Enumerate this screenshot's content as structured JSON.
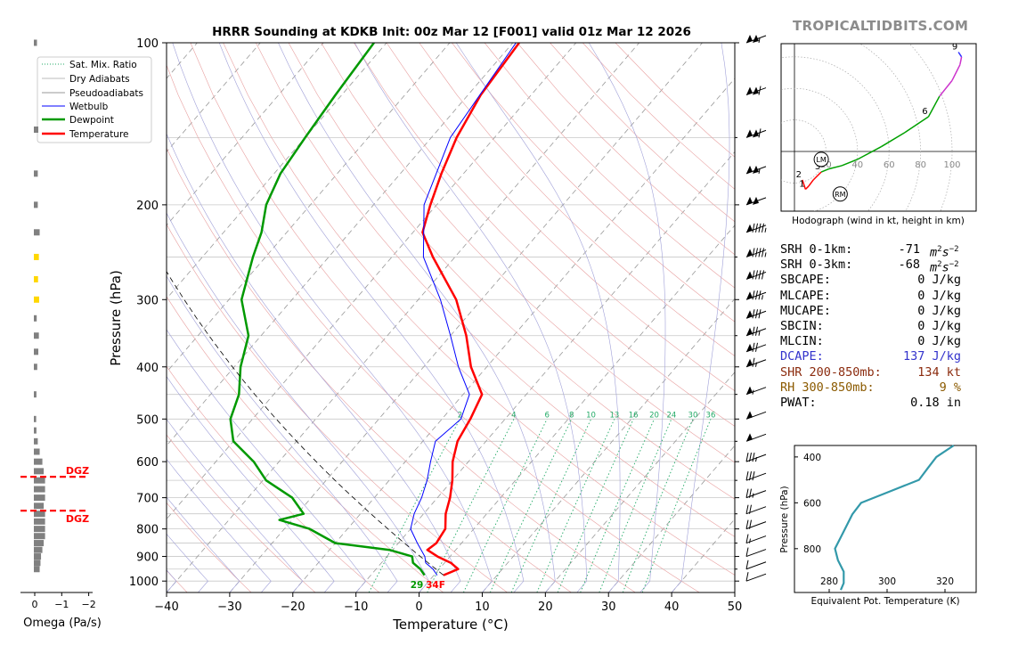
{
  "title": "HRRR Sounding at KDKB Init: 00z Mar 12 [F001] valid 01z Mar 12 2026",
  "watermark": "TROPICALTIDBITS.COM",
  "legend": [
    "Sat. Mix. Ratio",
    "Dry Adiabats",
    "Pseudoadiabats",
    "Wetbulb",
    "Dewpoint",
    "Temperature"
  ],
  "colors": {
    "temperature": "#ff0000",
    "dewpoint": "#009900",
    "wetbulb": "#0000ff",
    "theta_e": "#3399aa",
    "dcape": "#3333cc",
    "shear": "#8b2b0e",
    "rh": "#8b5a00"
  },
  "stats": {
    "srh01_label": "SRH 0-1km:",
    "srh01_value": "-71",
    "srh03_label": "SRH 0-3km:",
    "srh03_value": "-68",
    "srh_unit": "m2s-2",
    "sbcape_label": "SBCAPE:",
    "sbcape_value": "0 J/kg",
    "mlcape_label": "MLCAPE:",
    "mlcape_value": "0 J/kg",
    "mucape_label": "MUCAPE:",
    "mucape_value": "0 J/kg",
    "sbcin_label": "SBCIN:",
    "sbcin_value": "0 J/kg",
    "mlcin_label": "MLCIN:",
    "mlcin_value": "0 J/kg",
    "dcape_label": "DCAPE:",
    "dcape_value": "137 J/kg",
    "shr_label": "SHR 200-850mb:",
    "shr_value": "134 kt",
    "rh_label": "RH 300-850mb:",
    "rh_value": "9 %",
    "pwat_label": "PWAT:",
    "pwat_value": "0.18 in"
  },
  "surface_labels": {
    "dewpoint": "29",
    "temperature": "34F"
  },
  "dgz_label": "DGZ",
  "chart_data": [
    {
      "type": "line",
      "kind": "skew-t",
      "xlabel": "Temperature (°C)",
      "ylabel": "Pressure (hPa)",
      "xlim": [
        -40,
        50
      ],
      "ylim": [
        1050,
        100
      ],
      "x_ticks": [
        "−40",
        "−30",
        "−20",
        "−10",
        "0",
        "10",
        "20",
        "30",
        "40",
        "50"
      ],
      "y_ticks": [
        "100",
        "200",
        "300",
        "400",
        "500",
        "600",
        "700",
        "800",
        "900",
        "1000"
      ],
      "mixing_ratio_labels": [
        "2",
        "4",
        "6",
        "8",
        "10",
        "13",
        "16",
        "20",
        "24",
        "30",
        "36"
      ],
      "series": [
        {
          "name": "Temperature",
          "pressure": [
            975,
            950,
            925,
            900,
            875,
            850,
            800,
            750,
            700,
            650,
            600,
            550,
            500,
            450,
            400,
            350,
            300,
            250,
            225,
            200,
            175,
            150,
            125,
            100
          ],
          "temp_c": [
            1.5,
            3.0,
            1.0,
            -2.0,
            -4.5,
            -4.0,
            -4.5,
            -6.5,
            -8.0,
            -10.0,
            -12.5,
            -14.5,
            -15.5,
            -17.0,
            -22.5,
            -27.5,
            -34.0,
            -43.5,
            -48.5,
            -51.0,
            -53.5,
            -56.0,
            -58.0,
            -59.0
          ]
        },
        {
          "name": "Dewpoint",
          "pressure": [
            975,
            950,
            925,
            900,
            875,
            850,
            800,
            770,
            750,
            700,
            650,
            600,
            550,
            500,
            450,
            400,
            350,
            300,
            250,
            225,
            200,
            175,
            150,
            125,
            100
          ],
          "temp_c": [
            -1.5,
            -3.0,
            -5.0,
            -6.0,
            -10.5,
            -20.0,
            -26.0,
            -32.0,
            -29.0,
            -33.0,
            -39.5,
            -44.0,
            -50.0,
            -53.5,
            -55.5,
            -59.0,
            -62.0,
            -68.0,
            -72.0,
            -74.0,
            -77.0,
            -79.0,
            -80.0,
            -81.0,
            -82.0
          ]
        },
        {
          "name": "Wetbulb",
          "pressure": [
            975,
            950,
            925,
            900,
            850,
            800,
            750,
            700,
            650,
            600,
            550,
            500,
            450,
            400,
            350,
            300,
            250,
            200,
            150,
            100
          ],
          "temp_c": [
            0.5,
            -1.0,
            -3.0,
            -4.0,
            -7.0,
            -10.0,
            -11.5,
            -12.5,
            -14.0,
            -16.0,
            -18.0,
            -17.0,
            -19.0,
            -24.5,
            -30.0,
            -36.5,
            -45.0,
            -52.0,
            -57.0,
            -59.5
          ]
        }
      ]
    },
    {
      "type": "bar",
      "kind": "omega-profile",
      "xlabel": "Omega (Pa/s)",
      "x_ticks": [
        "0",
        "−1",
        "−2"
      ],
      "xlim": [
        0.4,
        -2.2
      ],
      "pressure": [
        100,
        145,
        175,
        200,
        225,
        250,
        275,
        300,
        325,
        350,
        375,
        400,
        450,
        500,
        525,
        550,
        575,
        600,
        625,
        650,
        675,
        700,
        725,
        750,
        775,
        800,
        825,
        850,
        875,
        900,
        925,
        950
      ],
      "values": [
        -0.05,
        -0.1,
        -0.08,
        -0.08,
        -0.15,
        -0.12,
        -0.09,
        -0.13,
        -0.04,
        -0.12,
        -0.1,
        -0.06,
        -0.03,
        -0.02,
        -0.03,
        -0.08,
        -0.15,
        -0.25,
        -0.3,
        -0.35,
        -0.35,
        -0.35,
        -0.3,
        -0.35,
        -0.35,
        -0.35,
        -0.35,
        -0.3,
        -0.25,
        -0.2,
        -0.18,
        -0.15
      ],
      "dgz_pressure": [
        640,
        740
      ],
      "dgz_highlight_color": "#ffd700"
    },
    {
      "type": "line",
      "kind": "hodograph",
      "caption": "Hodograph (wind in kt, height in km)",
      "ring_labels": [
        "20",
        "40",
        "60",
        "80",
        "100"
      ],
      "height_labels": [
        "1",
        "2",
        "3",
        "6",
        "9"
      ],
      "motion_labels": [
        "LM",
        "RM"
      ],
      "u": [
        5,
        7,
        9,
        12,
        17,
        22,
        30,
        40,
        55,
        70,
        85,
        92,
        100,
        105,
        106,
        104
      ],
      "v": [
        -18,
        -24,
        -22,
        -18,
        -13,
        -11,
        -9,
        -5,
        3,
        12,
        22,
        35,
        45,
        55,
        60,
        63
      ],
      "u_lm": 17,
      "v_lm": -5,
      "u_rm": 29,
      "v_rm": -27
    },
    {
      "type": "line",
      "kind": "theta-e-profile",
      "xlabel": "Equivalent Pot. Temperature (K)",
      "ylabel": "Pressure (hPa)",
      "x_ticks": [
        "280",
        "300",
        "320"
      ],
      "y_ticks": [
        "400",
        "600",
        "800"
      ],
      "pressure": [
        980,
        950,
        900,
        850,
        800,
        750,
        700,
        650,
        600,
        550,
        500,
        450,
        400,
        350
      ],
      "theta_e": [
        284,
        285,
        285,
        283,
        282,
        284,
        286,
        288,
        291,
        301,
        311,
        314,
        317,
        323
      ]
    }
  ]
}
